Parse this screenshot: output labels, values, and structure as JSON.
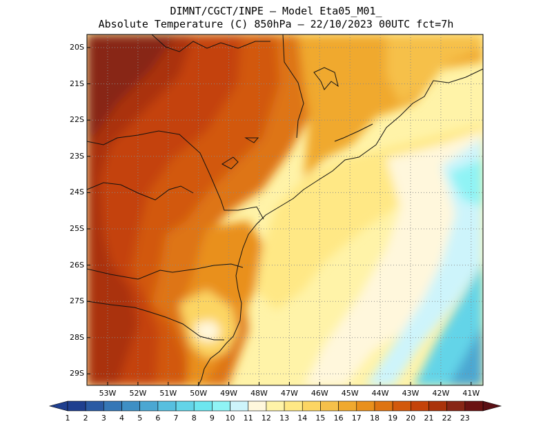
{
  "title": {
    "line1": "DIMNT/CGCT/INPE –  Model Eta05_M01_",
    "line2": "Absolute Temperature (C) 850hPa –  22/10/2023 00UTC fct=7h"
  },
  "map": {
    "lat_labels": [
      "20S",
      "21S",
      "22S",
      "23S",
      "24S",
      "25S",
      "26S",
      "27S",
      "28S",
      "29S"
    ],
    "lon_labels": [
      "53W",
      "52W",
      "51W",
      "50W",
      "49W",
      "48W",
      "47W",
      "46W",
      "45W",
      "44W",
      "43W",
      "42W",
      "41W"
    ]
  },
  "colorbar": {
    "labels": [
      "1",
      "2",
      "3",
      "4",
      "5",
      "6",
      "7",
      "8",
      "9",
      "10",
      "11",
      "12",
      "13",
      "14",
      "15",
      "16",
      "17",
      "18",
      "19",
      "20",
      "21",
      "22",
      "23"
    ],
    "colors": [
      "#1f3f8f",
      "#2a5aa3",
      "#3577b6",
      "#3f8fc4",
      "#4ba7d2",
      "#57bfdf",
      "#63d4e8",
      "#6de6ef",
      "#8ff3f5",
      "#cdf4fb",
      "#fff7dc",
      "#fff3a8",
      "#ffe885",
      "#fcd563",
      "#f6c04a",
      "#f0a92e",
      "#e9901c",
      "#de7412",
      "#d2590c",
      "#c4430a",
      "#aa330b",
      "#882616",
      "#6a1212"
    ],
    "under_color": "#1f3f8f",
    "over_color": "#5a0f14"
  }
}
